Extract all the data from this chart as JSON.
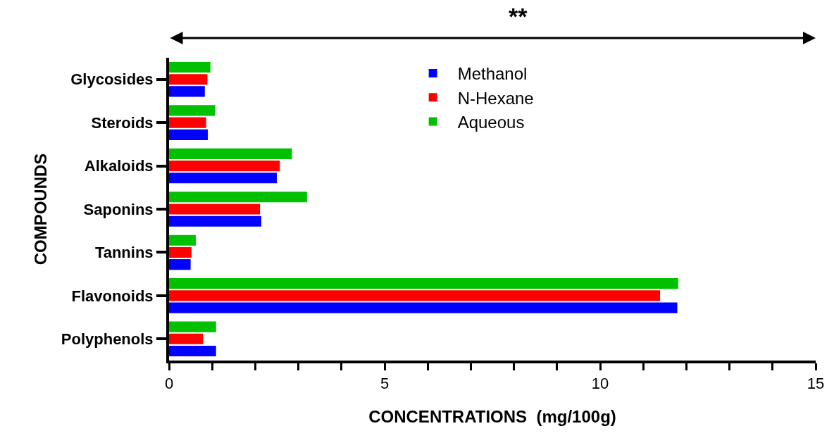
{
  "chart_data": {
    "type": "bar",
    "orientation": "horizontal",
    "xlabel": "CONCENTRATIONS  (mg/100g)",
    "ylabel": "COMPOUNDS",
    "annotations": [
      "**"
    ],
    "categories": [
      "Glycosides",
      "Steroids",
      "Alkaloids",
      "Saponins",
      "Tannins",
      "Flavonoids",
      "Polyphenols"
    ],
    "series": [
      {
        "name": "Methanol",
        "color": "#0000ff",
        "values": [
          0.83,
          0.9,
          2.5,
          2.14,
          0.5,
          11.79,
          1.09
        ]
      },
      {
        "name": "N-Hexane",
        "color": "#ff0000",
        "values": [
          0.89,
          0.86,
          2.57,
          2.11,
          0.52,
          11.39,
          0.79
        ]
      },
      {
        "name": "Aqueous",
        "color": "#00c000",
        "values": [
          0.96,
          1.07,
          2.85,
          3.2,
          0.62,
          11.81,
          1.09
        ]
      }
    ],
    "xlim": [
      0,
      15
    ],
    "xticks": [
      0,
      {
        "value": 1,
        "label": null
      },
      {
        "value": 2,
        "label": null
      },
      {
        "value": 3,
        "label": null
      },
      {
        "value": 4,
        "label": null
      },
      5,
      {
        "value": 6,
        "label": null
      },
      {
        "value": 7,
        "label": null
      },
      {
        "value": 8,
        "label": null
      },
      {
        "value": 9,
        "label": null
      },
      10,
      {
        "value": 11,
        "label": null
      },
      {
        "value": 12,
        "label": null
      },
      {
        "value": 13,
        "label": null
      },
      {
        "value": 14,
        "label": null
      },
      15
    ],
    "legend": "top"
  }
}
